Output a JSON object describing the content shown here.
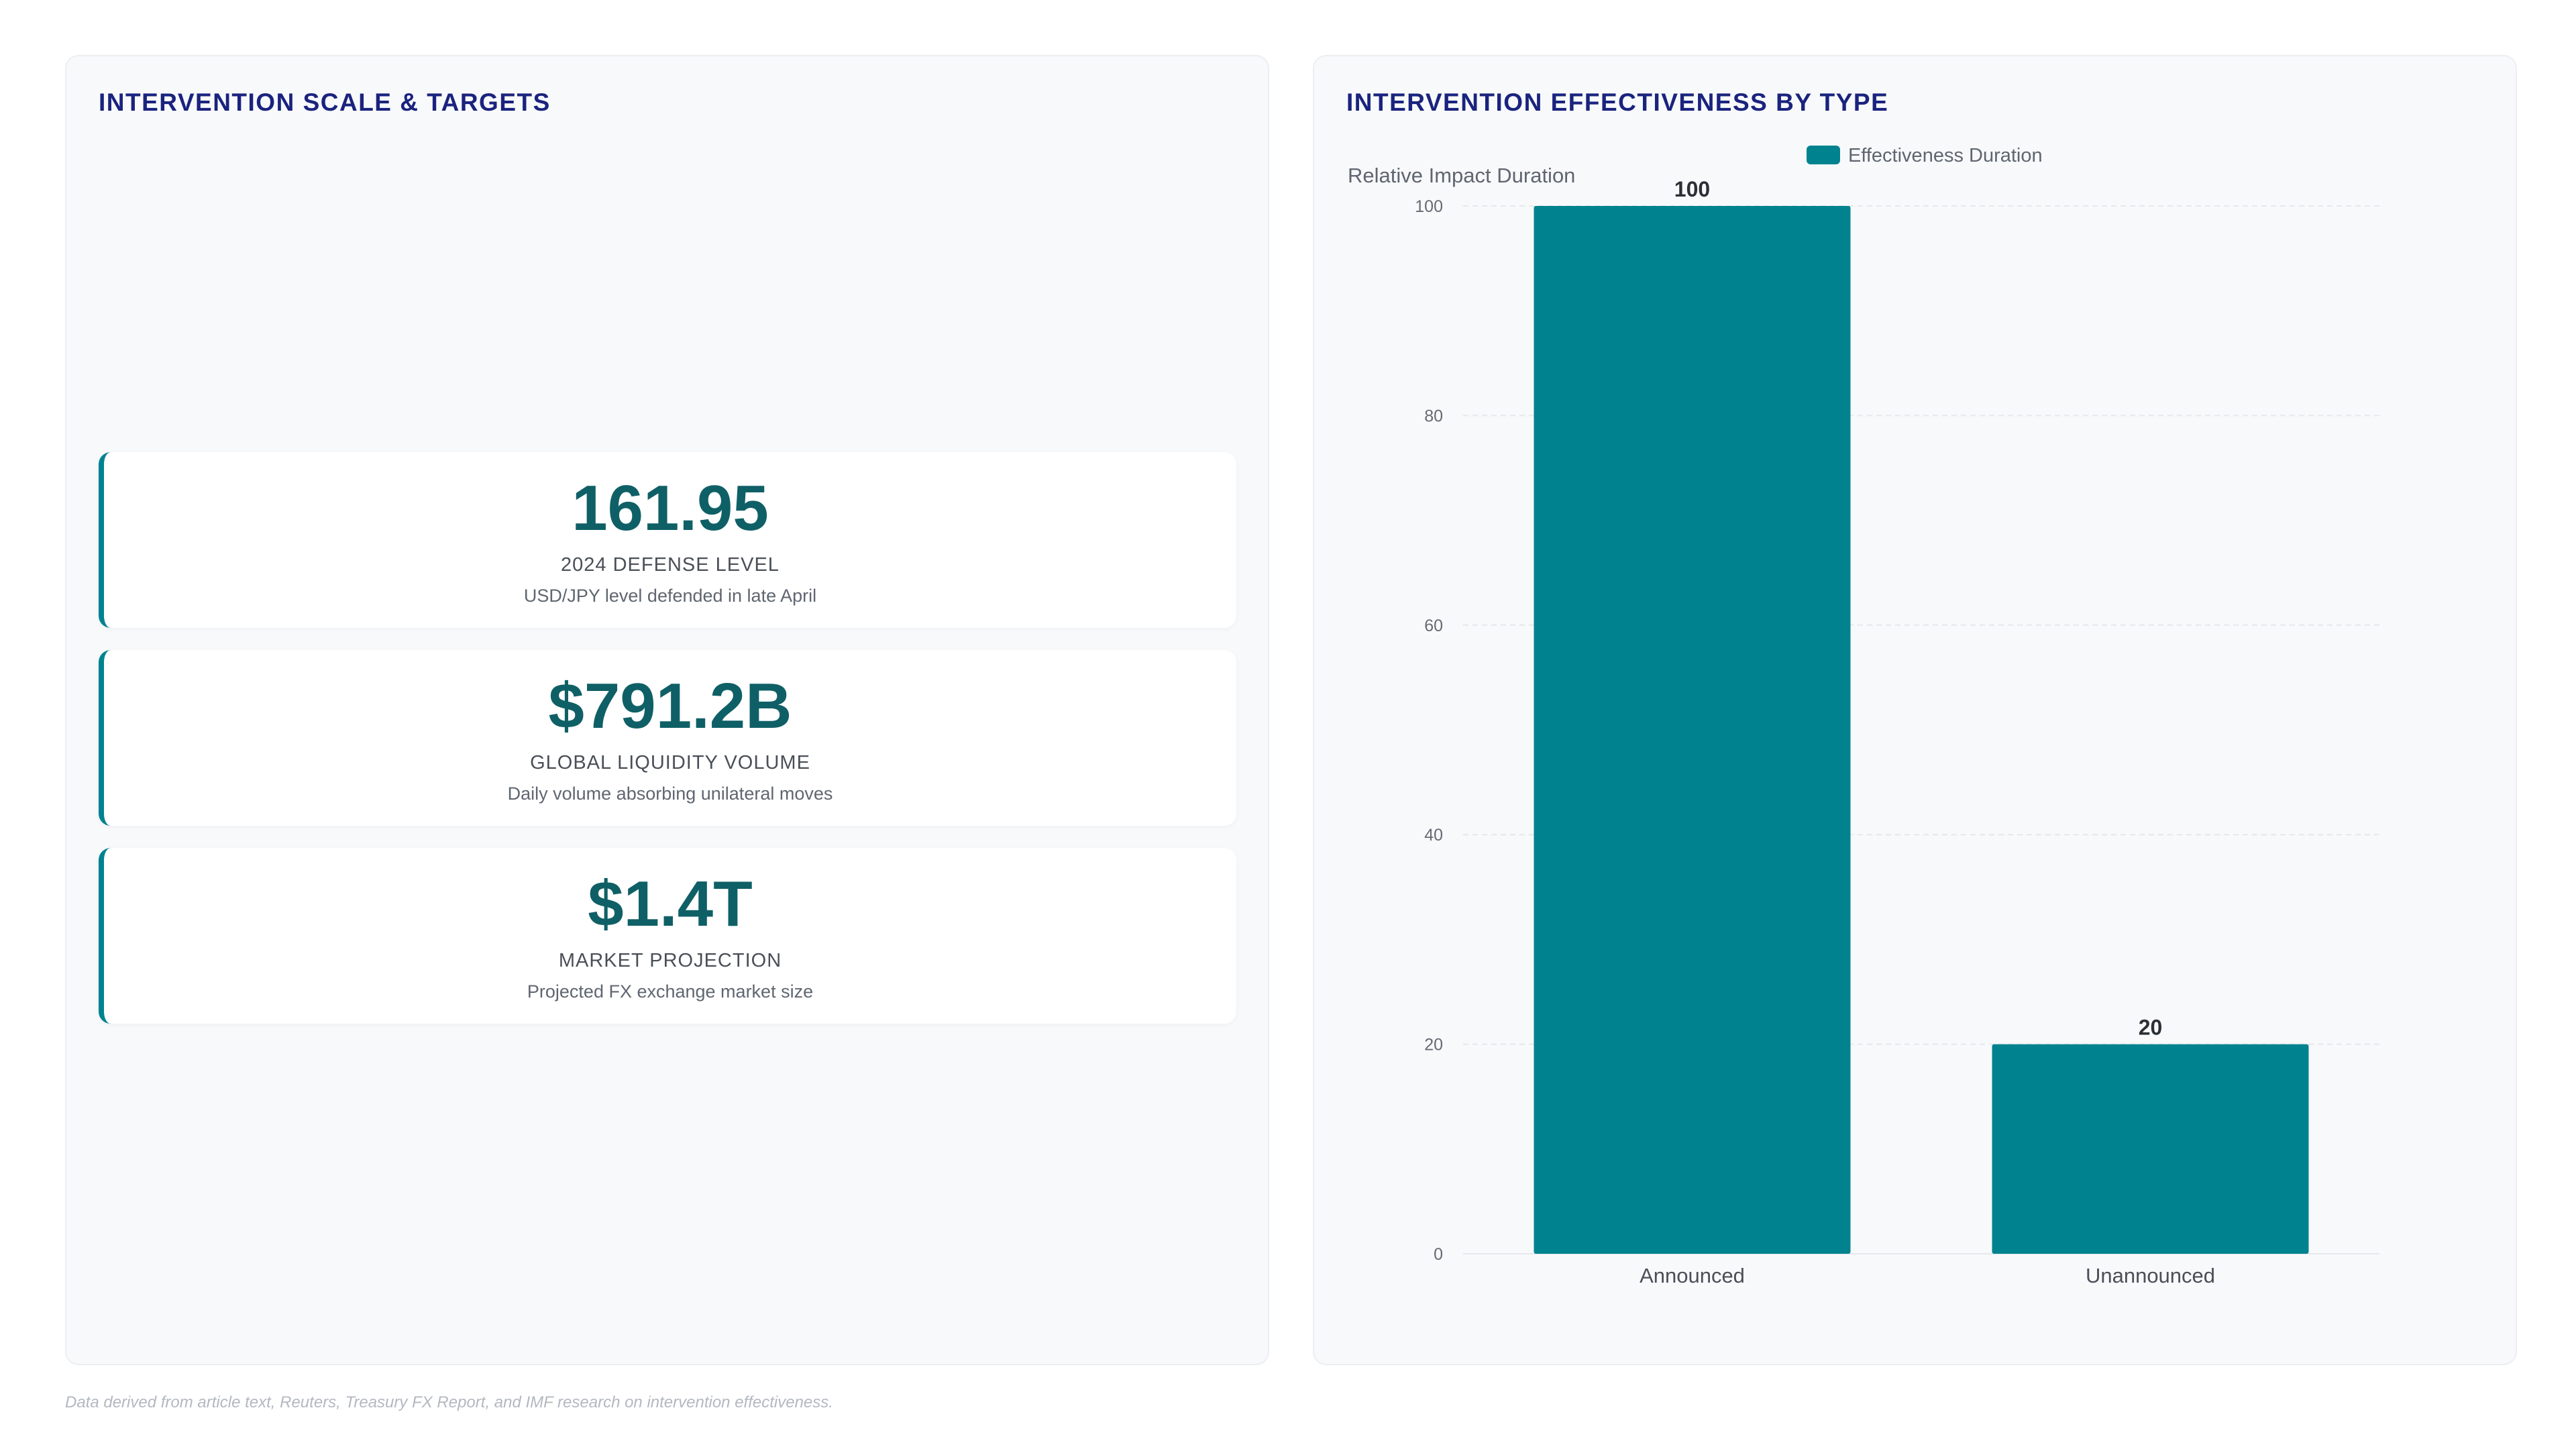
{
  "left_panel": {
    "title": "INTERVENTION SCALE & TARGETS",
    "stats": [
      {
        "value": "161.95",
        "label": "2024 DEFENSE LEVEL",
        "description": "USD/JPY level defended in late April"
      },
      {
        "value": "$791.2B",
        "label": "GLOBAL LIQUIDITY VOLUME",
        "description": "Daily volume absorbing unilateral moves"
      },
      {
        "value": "$1.4T",
        "label": "MARKET PROJECTION",
        "description": "Projected FX exchange market size"
      }
    ]
  },
  "right_panel": {
    "title": "INTERVENTION EFFECTIVENESS BY TYPE"
  },
  "chart_data": {
    "type": "bar",
    "categories": [
      "Announced",
      "Unannounced"
    ],
    "series": [
      {
        "name": "Effectiveness Duration",
        "values": [
          100,
          20
        ],
        "color": "#00838f"
      }
    ],
    "ylabel": "Relative Impact Duration",
    "xlabel": "",
    "ylim": [
      0,
      100
    ],
    "yticks": [
      0,
      20,
      40,
      60,
      80,
      100
    ],
    "data_labels": true,
    "grid": true,
    "legend": "top-center"
  },
  "footnote": "Data derived from article text, Reuters, Treasury FX Report, and IMF research on intervention effectiveness."
}
